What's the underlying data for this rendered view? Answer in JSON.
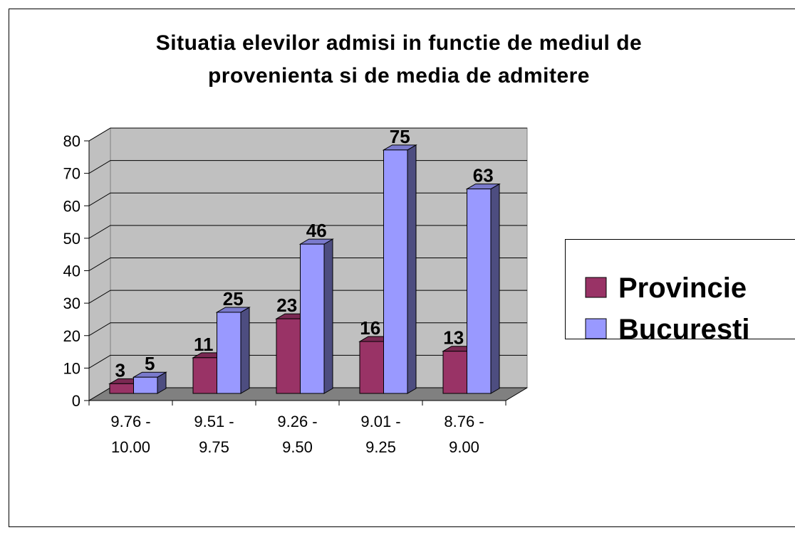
{
  "chart_data": {
    "type": "bar3d",
    "title": "Situatia elevilor admisi in functie de mediul de provenienta si de media de admitere",
    "categories": [
      "9.76 - 10.00",
      "9.51 - 9.75",
      "9.26 - 9.50",
      "9.01 - 9.25",
      "8.76 - 9.00"
    ],
    "series": [
      {
        "name": "Provincie",
        "color": "#993366",
        "values": [
          3,
          11,
          23,
          16,
          13
        ]
      },
      {
        "name": "Bucuresti",
        "color": "#9999ff",
        "values": [
          5,
          25,
          46,
          75,
          63
        ]
      }
    ],
    "ylim": [
      0,
      80
    ],
    "yticks": [
      0,
      10,
      20,
      30,
      40,
      50,
      60,
      70,
      80
    ],
    "grid": true,
    "legend": "right"
  }
}
